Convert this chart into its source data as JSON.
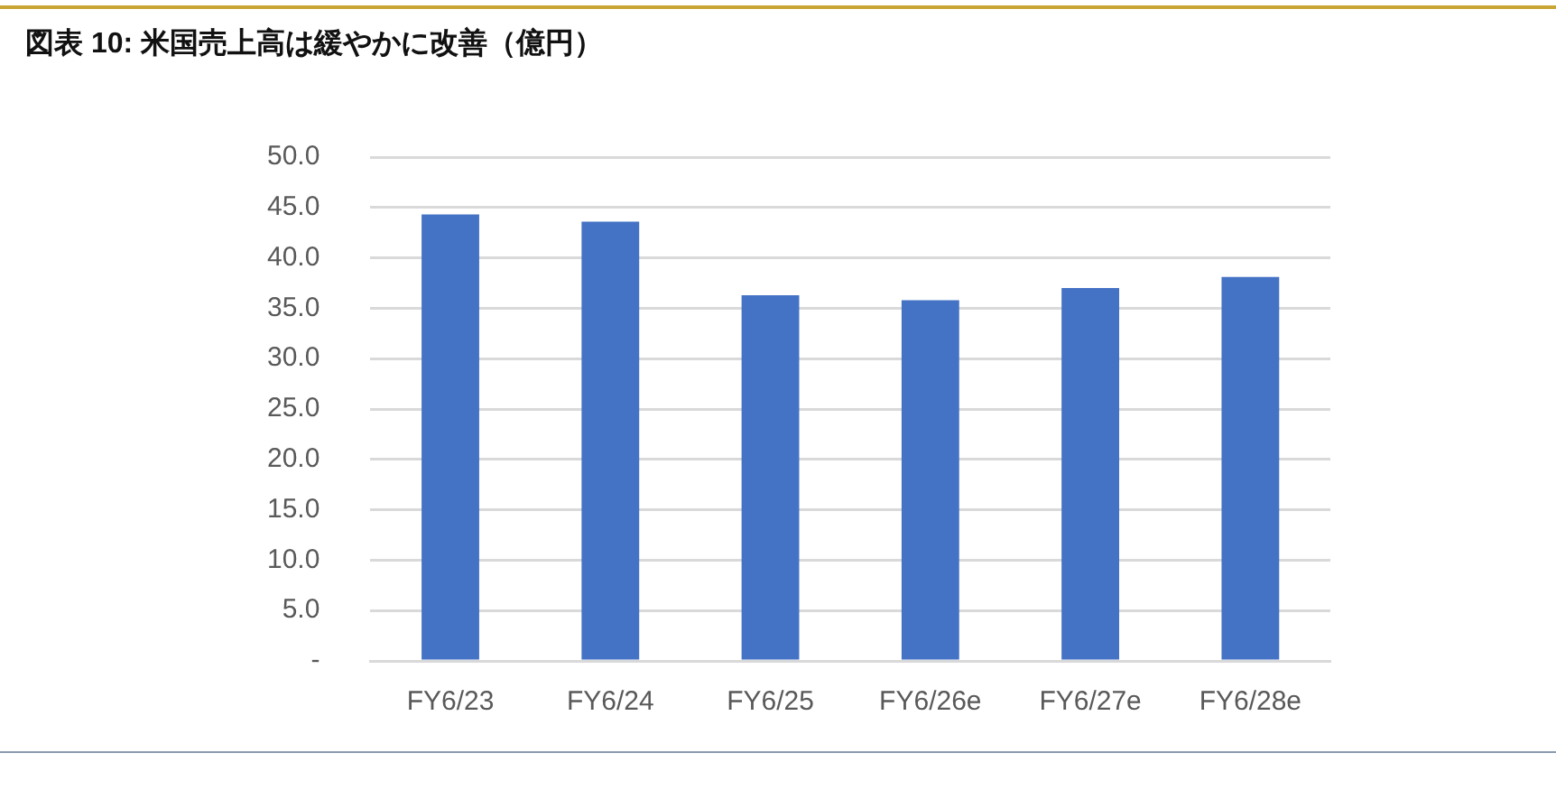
{
  "chart_data": {
    "type": "bar",
    "title": "図表 10:  米国売上高は緩やかに改善（億円）",
    "categories": [
      "FY6/23",
      "FY6/24",
      "FY6/25",
      "FY6/26e",
      "FY6/27e",
      "FY6/28e"
    ],
    "values": [
      44.3,
      43.6,
      36.3,
      35.8,
      37.0,
      38.1
    ],
    "color": "#4472c4",
    "ylim": [
      0,
      50
    ],
    "yticks": [
      {
        "value": 0,
        "label": "-"
      },
      {
        "value": 5,
        "label": "5.0"
      },
      {
        "value": 10,
        "label": "10.0"
      },
      {
        "value": 15,
        "label": "15.0"
      },
      {
        "value": 20,
        "label": "20.0"
      },
      {
        "value": 25,
        "label": "25.0"
      },
      {
        "value": 30,
        "label": "30.0"
      },
      {
        "value": 35,
        "label": "35.0"
      },
      {
        "value": 40,
        "label": "40.0"
      },
      {
        "value": 45,
        "label": "45.0"
      },
      {
        "value": 50,
        "label": "50.0"
      }
    ],
    "grid": "y"
  }
}
